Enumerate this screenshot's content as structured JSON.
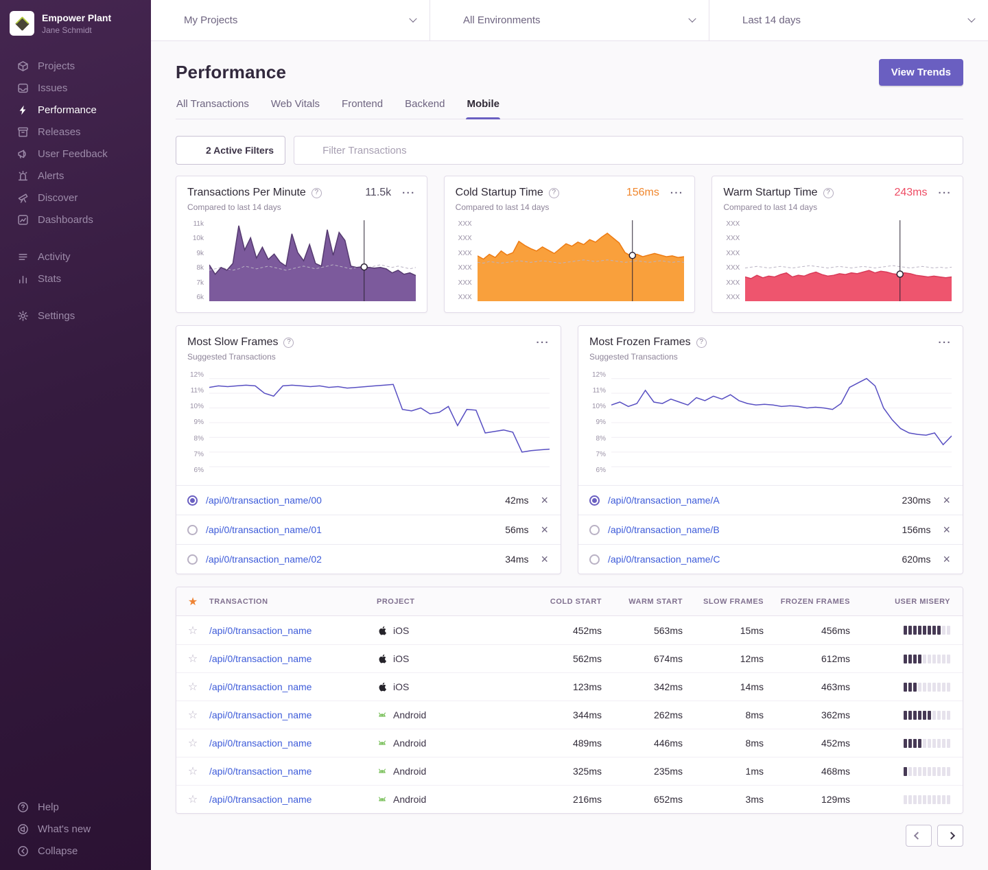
{
  "sidebar": {
    "org_name": "Empower Plant",
    "user_name": "Jane Schmidt",
    "primary": [
      {
        "icon": "projects-icon",
        "label": "Projects",
        "active": false
      },
      {
        "icon": "issues-icon",
        "label": "Issues",
        "active": false
      },
      {
        "icon": "performance-icon",
        "label": "Performance",
        "active": true
      },
      {
        "icon": "releases-icon",
        "label": "Releases",
        "active": false
      },
      {
        "icon": "user-feedback-icon",
        "label": "User Feedback",
        "active": false
      },
      {
        "icon": "alerts-icon",
        "label": "Alerts",
        "active": false
      },
      {
        "icon": "discover-icon",
        "label": "Discover",
        "active": false
      },
      {
        "icon": "dashboards-icon",
        "label": "Dashboards",
        "active": false
      }
    ],
    "secondary": [
      {
        "icon": "activity-icon",
        "label": "Activity",
        "active": false
      },
      {
        "icon": "stats-icon",
        "label": "Stats",
        "active": false
      }
    ],
    "tertiary": [
      {
        "icon": "settings-icon",
        "label": "Settings",
        "active": false
      }
    ],
    "footer": [
      {
        "icon": "help-icon",
        "label": "Help",
        "active": false
      },
      {
        "icon": "whats-new-icon",
        "label": "What's new",
        "active": false
      },
      {
        "icon": "collapse-icon",
        "label": "Collapse",
        "active": false
      }
    ]
  },
  "topbar": {
    "project_selector": "My Projects",
    "environment_selector": "All Environments",
    "date_selector": "Last 14 days"
  },
  "header": {
    "title": "Performance",
    "view_trends_label": "View Trends",
    "tabs": [
      {
        "label": "All Transactions",
        "active": false
      },
      {
        "label": "Web Vitals",
        "active": false
      },
      {
        "label": "Frontend",
        "active": false
      },
      {
        "label": "Backend",
        "active": false
      },
      {
        "label": "Mobile",
        "active": true
      }
    ]
  },
  "filters": {
    "active_filters_label": "2 Active Filters",
    "search_placeholder": "Filter Transactions"
  },
  "icons": {
    "menu_dots": "···",
    "help": "?",
    "star_filled": "★",
    "star_outline": "☆",
    "close": "×"
  },
  "mini_cards": [
    {
      "title": "Transactions Per Minute",
      "value": "11.5k",
      "value_color": "#514a5e",
      "subtitle": "Compared to last 14 days"
    },
    {
      "title": "Cold Startup Time",
      "value": "156ms",
      "value_color": "#f0862c",
      "subtitle": "Compared to last 14 days"
    },
    {
      "title": "Warm Startup Time",
      "value": "243ms",
      "value_color": "#ee4b63",
      "subtitle": "Compared to last 14 days"
    }
  ],
  "panels": [
    {
      "title": "Most Slow Frames",
      "subtitle": "Suggested Transactions",
      "rows": [
        {
          "label": "/api/0/transaction_name/00",
          "value": "42ms",
          "selected": true
        },
        {
          "label": "/api/0/transaction_name/01",
          "value": "56ms",
          "selected": false
        },
        {
          "label": "/api/0/transaction_name/02",
          "value": "34ms",
          "selected": false
        }
      ]
    },
    {
      "title": "Most Frozen Frames",
      "subtitle": "Suggested Transactions",
      "rows": [
        {
          "label": "/api/0/transaction_name/A",
          "value": "230ms",
          "selected": true
        },
        {
          "label": "/api/0/transaction_name/B",
          "value": "156ms",
          "selected": false
        },
        {
          "label": "/api/0/transaction_name/C",
          "value": "620ms",
          "selected": false
        }
      ]
    }
  ],
  "table": {
    "columns": [
      "TRANSACTION",
      "PROJECT",
      "COLD START",
      "WARM START",
      "SLOW FRAMES",
      "FROZEN FRAMES",
      "USER MISERY"
    ],
    "misery_total": 10,
    "rows": [
      {
        "transaction": "/api/0/transaction_name",
        "platform": "apple",
        "project": "iOS",
        "cold_start": "452ms",
        "warm_start": "563ms",
        "slow_frames": "15ms",
        "frozen_frames": "456ms",
        "user_misery": 8
      },
      {
        "transaction": "/api/0/transaction_name",
        "platform": "apple",
        "project": "iOS",
        "cold_start": "562ms",
        "warm_start": "674ms",
        "slow_frames": "12ms",
        "frozen_frames": "612ms",
        "user_misery": 4
      },
      {
        "transaction": "/api/0/transaction_name",
        "platform": "apple",
        "project": "iOS",
        "cold_start": "123ms",
        "warm_start": "342ms",
        "slow_frames": "14ms",
        "frozen_frames": "463ms",
        "user_misery": 3
      },
      {
        "transaction": "/api/0/transaction_name",
        "platform": "android",
        "project": "Android",
        "cold_start": "344ms",
        "warm_start": "262ms",
        "slow_frames": "8ms",
        "frozen_frames": "362ms",
        "user_misery": 6
      },
      {
        "transaction": "/api/0/transaction_name",
        "platform": "android",
        "project": "Android",
        "cold_start": "489ms",
        "warm_start": "446ms",
        "slow_frames": "8ms",
        "frozen_frames": "452ms",
        "user_misery": 4
      },
      {
        "transaction": "/api/0/transaction_name",
        "platform": "android",
        "project": "Android",
        "cold_start": "325ms",
        "warm_start": "235ms",
        "slow_frames": "1ms",
        "frozen_frames": "468ms",
        "user_misery": 1
      },
      {
        "transaction": "/api/0/transaction_name",
        "platform": "android",
        "project": "Android",
        "cold_start": "216ms",
        "warm_start": "652ms",
        "slow_frames": "3ms",
        "frozen_frames": "129ms",
        "user_misery": 0
      }
    ]
  },
  "colors": {
    "accent_purple": "#6A5FC1",
    "link_blue": "#3D5BD9",
    "orange": "#F0862C",
    "red": "#EE4B63",
    "misery_filled": "#473A55",
    "misery_empty": "#E6E2EC"
  },
  "chart_data": [
    {
      "id": "transactions-per-minute",
      "type": "area",
      "title": "Transactions Per Minute",
      "current_value": "11.5k",
      "yticks": [
        "11k",
        "10k",
        "9k",
        "8k",
        "7k",
        "6k"
      ],
      "ylim": [
        5.5,
        11.5
      ],
      "fill": "#7c5a9c",
      "stroke": "#54396f",
      "marker_x": 0.75,
      "values": [
        8.2,
        7.5,
        8.0,
        7.8,
        8.3,
        11.1,
        9.3,
        10.2,
        8.7,
        9.5,
        8.6,
        9.0,
        8.4,
        8.1,
        10.5,
        9.1,
        8.5,
        9.7,
        8.3,
        8.1,
        10.8,
        8.9,
        10.6,
        10.0,
        8.1,
        8.0,
        8.05,
        8.0,
        7.95,
        8.0,
        7.9,
        7.6,
        7.8,
        7.5,
        7.6,
        7.4
      ],
      "baseline": [
        7.8,
        7.9,
        8.0,
        7.9,
        7.8,
        7.9,
        8.1,
        8.0,
        7.9,
        8.0,
        8.1,
        8.0,
        7.9,
        7.8,
        7.9,
        8.0,
        8.1,
        8.0,
        7.9,
        8.0,
        8.1,
        8.2,
        8.1,
        8.0,
        7.9,
        8.0,
        8.1,
        8.0,
        8.1,
        8.2,
        8.1,
        8.0,
        8.1,
        8.0,
        7.9,
        8.0
      ]
    },
    {
      "id": "cold-startup-time",
      "type": "area",
      "title": "Cold Startup Time",
      "current_value": "156ms",
      "yticks": [
        "XXX",
        "XXX",
        "XXX",
        "XXX",
        "XXX",
        "XXX"
      ],
      "ylim": [
        0,
        100
      ],
      "fill": "#f9a03c",
      "stroke": "#ed7b12",
      "marker_x": 0.75,
      "values": [
        56,
        52,
        58,
        54,
        62,
        57,
        60,
        74,
        69,
        65,
        62,
        67,
        63,
        59,
        65,
        71,
        68,
        73,
        70,
        76,
        73,
        79,
        84,
        78,
        72,
        60,
        56,
        58,
        55,
        57,
        59,
        57,
        55,
        56,
        54,
        55
      ],
      "baseline": [
        48,
        47,
        49,
        48,
        47,
        48,
        49,
        50,
        49,
        48,
        49,
        50,
        49,
        48,
        47,
        48,
        49,
        50,
        51,
        50,
        49,
        50,
        51,
        50,
        49,
        48,
        49,
        50,
        49,
        48,
        49,
        50,
        49,
        48,
        49,
        48
      ]
    },
    {
      "id": "warm-startup-time",
      "type": "area",
      "title": "Warm Startup Time",
      "current_value": "243ms",
      "yticks": [
        "XXX",
        "XXX",
        "XXX",
        "XXX",
        "XXX",
        "XXX"
      ],
      "ylim": [
        0,
        100
      ],
      "fill": "#ee556e",
      "stroke": "#d93a58",
      "marker_x": 0.75,
      "values": [
        30,
        28,
        32,
        29,
        31,
        30,
        33,
        35,
        30,
        32,
        31,
        34,
        36,
        33,
        31,
        32,
        34,
        33,
        35,
        34,
        36,
        38,
        35,
        37,
        36,
        34,
        33,
        35,
        34,
        32,
        31,
        30,
        31,
        30,
        29,
        30
      ],
      "baseline": [
        41,
        42,
        43,
        42,
        41,
        42,
        43,
        42,
        41,
        42,
        43,
        44,
        43,
        42,
        41,
        42,
        43,
        42,
        41,
        42,
        43,
        42,
        41,
        42,
        43,
        44,
        43,
        42,
        41,
        42,
        43,
        42,
        41,
        42,
        41,
        42
      ]
    },
    {
      "id": "most-slow-frames",
      "type": "line",
      "title": "Most Slow Frames",
      "yticks": [
        "12%",
        "11%",
        "10%",
        "9%",
        "8%",
        "7%",
        "6%"
      ],
      "ylim": [
        5.5,
        12.5
      ],
      "grid": true,
      "stroke": "#574ec2",
      "values": [
        11.4,
        11.5,
        11.45,
        11.5,
        11.55,
        11.5,
        11.0,
        10.8,
        11.5,
        11.55,
        11.5,
        11.45,
        11.5,
        11.4,
        11.45,
        11.35,
        11.4,
        11.45,
        11.5,
        11.55,
        11.6,
        9.9,
        9.8,
        10.0,
        9.6,
        9.7,
        10.1,
        8.8,
        9.9,
        9.85,
        8.3,
        8.4,
        8.5,
        8.35,
        7.0,
        7.1,
        7.15,
        7.2
      ]
    },
    {
      "id": "most-frozen-frames",
      "type": "line",
      "title": "Most Frozen Frames",
      "yticks": [
        "12%",
        "11%",
        "10%",
        "9%",
        "8%",
        "7%",
        "6%"
      ],
      "ylim": [
        5.5,
        12.5
      ],
      "grid": true,
      "stroke": "#574ec2",
      "values": [
        10.2,
        10.4,
        10.1,
        10.3,
        11.2,
        10.4,
        10.3,
        10.6,
        10.4,
        10.2,
        10.7,
        10.5,
        10.8,
        10.6,
        10.9,
        10.5,
        10.3,
        10.2,
        10.25,
        10.2,
        10.1,
        10.15,
        10.1,
        10.0,
        10.05,
        10.0,
        9.9,
        10.3,
        11.4,
        11.7,
        12.0,
        11.5,
        10.0,
        9.2,
        8.6,
        8.3,
        8.2,
        8.15,
        8.3,
        7.5,
        8.1
      ]
    }
  ]
}
